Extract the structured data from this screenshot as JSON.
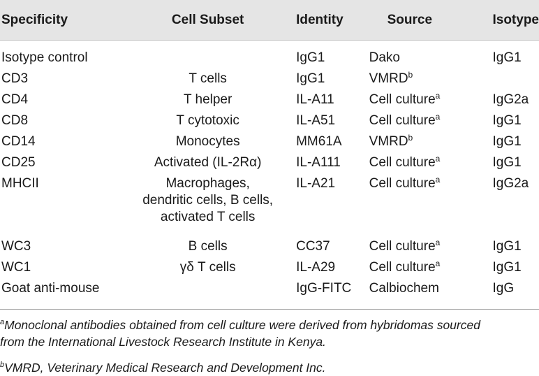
{
  "headers": [
    "Specificity",
    "Cell Subset",
    "Identity",
    "Source",
    "Isotype"
  ],
  "rows": [
    {
      "specificity": "Isotype control",
      "subset": "",
      "identity": "IgG1",
      "source": "Dako",
      "source_sup": "",
      "isotype": "IgG1"
    },
    {
      "specificity": "CD3",
      "subset": "T cells",
      "identity": "IgG1",
      "source": "VMRD",
      "source_sup": "b",
      "isotype": ""
    },
    {
      "specificity": "CD4",
      "subset": "T helper",
      "identity": "IL-A11",
      "source": "Cell culture",
      "source_sup": "a",
      "isotype": "IgG2a"
    },
    {
      "specificity": "CD8",
      "subset": "T cytotoxic",
      "identity": "IL-A51",
      "source": "Cell culture",
      "source_sup": "a",
      "isotype": "IgG1"
    },
    {
      "specificity": "CD14",
      "subset": "Monocytes",
      "identity": "MM61A",
      "source": "VMRD",
      "source_sup": "b",
      "isotype": "IgG1"
    },
    {
      "specificity": "CD25",
      "subset": "Activated (IL-2Rα)",
      "identity": "IL-A111",
      "source": "Cell culture",
      "source_sup": "a",
      "isotype": "IgG1"
    },
    {
      "specificity": "MHCII",
      "subset_lines": [
        "Macrophages,",
        "dendritic cells, B cells,",
        "activated T cells"
      ],
      "identity": "IL-A21",
      "source": "Cell culture",
      "source_sup": "a",
      "isotype": "IgG2a"
    },
    {
      "specificity": "WC3",
      "subset": "B cells",
      "identity": "CC37",
      "source": "Cell culture",
      "source_sup": "a",
      "isotype": "IgG1"
    },
    {
      "specificity": "WC1",
      "subset": "γδ T cells",
      "identity": "IL-A29",
      "source": "Cell culture",
      "source_sup": "a",
      "isotype": "IgG1"
    },
    {
      "specificity": "Goat anti-mouse",
      "subset": "",
      "identity": "IgG-FITC",
      "source": "Calbiochem",
      "source_sup": "",
      "isotype": "IgG"
    }
  ],
  "footnotes": [
    {
      "marker": "a",
      "lines": [
        "Monoclonal antibodies obtained from cell culture were derived from hybridomas sourced",
        "from the International Livestock Research Institute in Kenya."
      ]
    },
    {
      "marker": "b",
      "lines": [
        "VMRD, Veterinary Medical Research and Development Inc."
      ]
    }
  ]
}
